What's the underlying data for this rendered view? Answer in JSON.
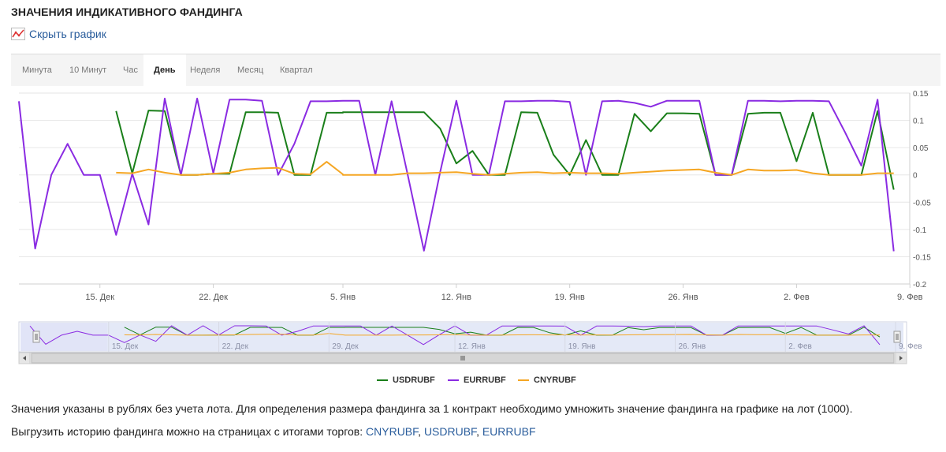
{
  "page": {
    "title": "ЗНАЧЕНИЯ ИНДИКАТИВНОГО ФАНДИНГА",
    "hide_chart_link": "Скрыть график"
  },
  "tabs": [
    {
      "label": "Минута",
      "active": false
    },
    {
      "label": "10 Минут",
      "active": false
    },
    {
      "label": "Час",
      "active": false
    },
    {
      "label": "День",
      "active": true
    },
    {
      "label": "Неделя",
      "active": false
    },
    {
      "label": "Месяц",
      "active": false
    },
    {
      "label": "Квартал",
      "active": false
    }
  ],
  "chart_data": {
    "type": "line",
    "x_axis_labels": [
      "15. Дек",
      "22. Дек",
      "5. Янв",
      "12. Янв",
      "19. Янв",
      "26. Янв",
      "2. Фев",
      "9. Фев"
    ],
    "navigator_axis_labels": [
      "15. Дек",
      "22. Дек",
      "29. Дек",
      "12. Янв",
      "19. Янв",
      "26. Янв",
      "2. Фев",
      "9. Фев"
    ],
    "y_ticks": [
      "0.15",
      "0.1",
      "0.05",
      "0",
      "-0.05",
      "-0.1",
      "-0.15",
      "-0.2"
    ],
    "ylim": [
      -0.2,
      0.15
    ],
    "x_dates": [
      "2025-12-10",
      "2025-12-11",
      "2025-12-12",
      "2025-12-13",
      "2025-12-14",
      "2025-12-15",
      "2025-12-16",
      "2025-12-17",
      "2025-12-18",
      "2025-12-19",
      "2025-12-20",
      "2025-12-21",
      "2025-12-22",
      "2025-12-23",
      "2025-12-24",
      "2025-12-25",
      "2025-12-26",
      "2025-12-27",
      "2025-12-28",
      "2025-12-29",
      "2025-12-30",
      "2026-01-05",
      "2026-01-06",
      "2026-01-07",
      "2026-01-08",
      "2026-01-09",
      "2026-01-10",
      "2026-01-11",
      "2026-01-12",
      "2026-01-13",
      "2026-01-14",
      "2026-01-15",
      "2026-01-16",
      "2026-01-17",
      "2026-01-18",
      "2026-01-19",
      "2026-01-20",
      "2026-01-21",
      "2026-01-22",
      "2026-01-23",
      "2026-01-24",
      "2026-01-25",
      "2026-01-26",
      "2026-01-27",
      "2026-01-28",
      "2026-01-29",
      "2026-01-30",
      "2026-01-31",
      "2026-02-01",
      "2026-02-02",
      "2026-02-03",
      "2026-02-04",
      "2026-02-05",
      "2026-02-06",
      "2026-02-07",
      "2026-02-08",
      "2026-02-09",
      "2026-02-10",
      "2026-02-11"
    ],
    "series": [
      {
        "name": "USDRUBF",
        "color": "#1a7f1a",
        "values": [
          null,
          null,
          null,
          null,
          null,
          null,
          0.117,
          0.003,
          0.118,
          0.117,
          0.0,
          0.0,
          0.002,
          0.002,
          0.115,
          0.115,
          0.114,
          0.0,
          0.0,
          0.114,
          0.114,
          0.115,
          0.115,
          0.115,
          0.115,
          0.115,
          0.115,
          0.085,
          0.021,
          0.044,
          0.0,
          0.0,
          0.115,
          0.114,
          0.037,
          0.0,
          0.064,
          0.0,
          0.0,
          0.112,
          0.08,
          0.113,
          0.113,
          0.112,
          0.0,
          0.0,
          0.112,
          0.114,
          0.114,
          0.025,
          0.114,
          0.0,
          0.0,
          0.0,
          0.117,
          -0.027,
          null,
          null,
          null
        ]
      },
      {
        "name": "EURRUBF",
        "color": "#8a2be2",
        "values": [
          0.135,
          -0.135,
          0.0,
          0.057,
          0.0,
          0.0,
          -0.11,
          0.002,
          -0.091,
          0.14,
          0.0,
          0.14,
          0.003,
          0.138,
          0.138,
          0.136,
          0.0,
          0.057,
          0.135,
          0.135,
          0.136,
          0.136,
          0.136,
          0.0,
          0.135,
          0.0,
          -0.139,
          0.005,
          0.136,
          0.0,
          0.0,
          0.135,
          0.135,
          0.136,
          0.136,
          0.134,
          0.0,
          0.135,
          0.136,
          0.132,
          0.125,
          0.136,
          0.136,
          0.136,
          0.0,
          0.0,
          0.136,
          0.136,
          0.135,
          0.136,
          0.136,
          0.135,
          0.078,
          0.017,
          0.138,
          -0.14,
          null,
          null,
          null
        ]
      },
      {
        "name": "CNYRUBF",
        "color": "#f5a623",
        "values": [
          null,
          null,
          null,
          null,
          null,
          null,
          0.004,
          0.003,
          0.01,
          0.004,
          0.0,
          0.0,
          0.002,
          0.004,
          0.01,
          0.012,
          0.013,
          0.002,
          0.001,
          0.024,
          0.001,
          0.0,
          0.0,
          0.0,
          0.0,
          0.003,
          0.003,
          0.004,
          0.005,
          0.002,
          0.0,
          0.002,
          0.004,
          0.005,
          0.003,
          0.004,
          0.003,
          0.003,
          0.002,
          0.004,
          0.006,
          0.008,
          0.009,
          0.01,
          0.004,
          0.0,
          0.01,
          0.008,
          0.008,
          0.009,
          0.003,
          0.0,
          0.0,
          0.0,
          0.003,
          0.003,
          null,
          null,
          null
        ]
      }
    ]
  },
  "legend": [
    "USDRUBF",
    "EURRUBF",
    "CNYRUBF"
  ],
  "notes": {
    "line1": "Значения указаны в рублях без учета лота. Для определения размера фандинга за 1 контракт необходимо умножить значение фандинга на графике на лот (1000).",
    "line2_prefix": "Выгрузить историю фандинга можно на страницах с итогами торгов: ",
    "links": [
      "CNYRUBF",
      "USDRUBF",
      "EURRUBF"
    ],
    "separator": ", "
  }
}
